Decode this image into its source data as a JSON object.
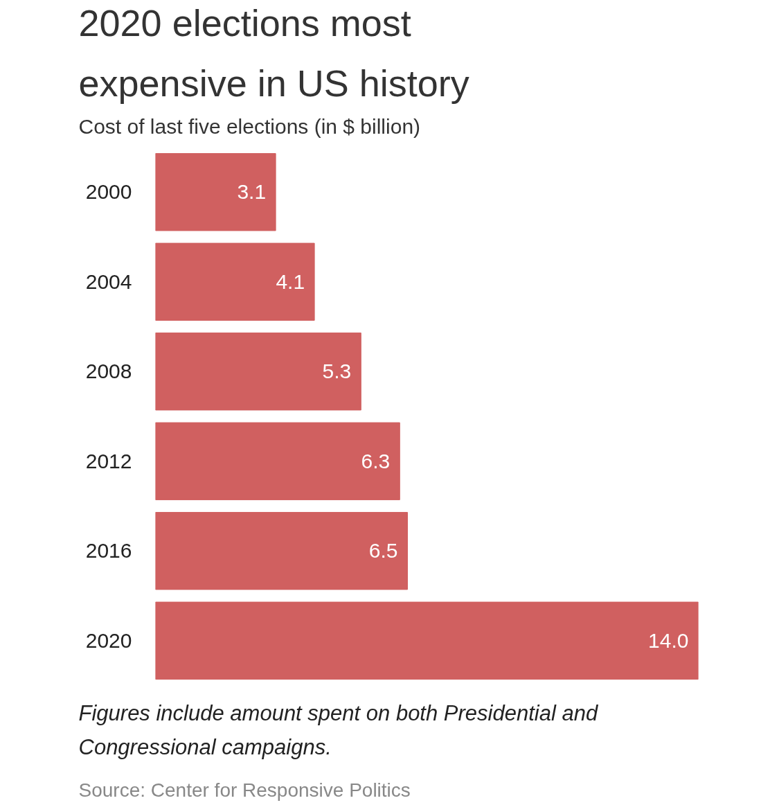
{
  "chart_data": {
    "type": "bar",
    "orientation": "horizontal",
    "title": "2020 elections most expensive in US history",
    "subtitle": "Cost of last five elections (in $ billion)",
    "categories": [
      "2000",
      "2004",
      "2008",
      "2012",
      "2016",
      "2020"
    ],
    "values": [
      3.1,
      4.1,
      5.3,
      6.3,
      6.5,
      14.0
    ],
    "value_labels": [
      "3.1",
      "4.1",
      "5.3",
      "6.3",
      "6.5",
      "14.0"
    ],
    "color": "#d06060",
    "annotations": [
      "Figures include amount spent on both Presidential and Congressional campaigns.",
      "Source: Center for Responsive Politics"
    ]
  }
}
